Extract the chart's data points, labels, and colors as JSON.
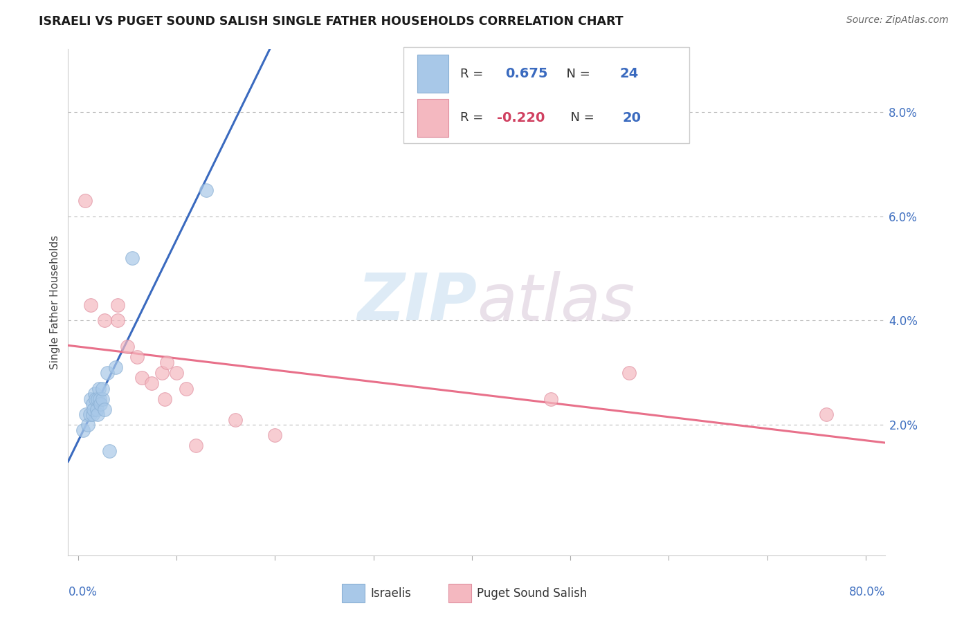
{
  "title": "ISRAELI VS PUGET SOUND SALISH SINGLE FATHER HOUSEHOLDS CORRELATION CHART",
  "source": "Source: ZipAtlas.com",
  "ylabel": "Single Father Households",
  "yticks": [
    0.02,
    0.04,
    0.06,
    0.08
  ],
  "ytick_labels": [
    "2.0%",
    "4.0%",
    "6.0%",
    "8.0%"
  ],
  "xlim": [
    -0.01,
    0.82
  ],
  "ylim": [
    -0.005,
    0.092
  ],
  "legend_blue_r": "0.675",
  "legend_blue_n": "24",
  "legend_pink_r": "-0.220",
  "legend_pink_n": "20",
  "blue_scatter_color": "#a8c8e8",
  "pink_scatter_color": "#f4b8c0",
  "blue_edge_color": "#8ab0d4",
  "pink_edge_color": "#e090a0",
  "line_blue_color": "#3a6abf",
  "line_pink_color": "#e8708a",
  "watermark_zip": "ZIP",
  "watermark_atlas": "atlas",
  "watermark_color": "#d0e4f0",
  "background_color": "#ffffff",
  "israelis_x": [
    0.005,
    0.008,
    0.01,
    0.012,
    0.013,
    0.015,
    0.015,
    0.016,
    0.017,
    0.018,
    0.019,
    0.02,
    0.02,
    0.021,
    0.022,
    0.023,
    0.025,
    0.025,
    0.027,
    0.03,
    0.032,
    0.038,
    0.055,
    0.13
  ],
  "israelis_y": [
    0.019,
    0.022,
    0.02,
    0.022,
    0.025,
    0.022,
    0.024,
    0.023,
    0.026,
    0.025,
    0.023,
    0.025,
    0.022,
    0.027,
    0.025,
    0.024,
    0.025,
    0.027,
    0.023,
    0.03,
    0.015,
    0.031,
    0.052,
    0.065
  ],
  "salish_x": [
    0.007,
    0.013,
    0.027,
    0.04,
    0.04,
    0.05,
    0.06,
    0.065,
    0.075,
    0.085,
    0.088,
    0.09,
    0.1,
    0.11,
    0.12,
    0.16,
    0.2,
    0.48,
    0.56,
    0.76
  ],
  "salish_y": [
    0.063,
    0.043,
    0.04,
    0.04,
    0.043,
    0.035,
    0.033,
    0.029,
    0.028,
    0.03,
    0.025,
    0.032,
    0.03,
    0.027,
    0.016,
    0.021,
    0.018,
    0.025,
    0.03,
    0.022
  ]
}
